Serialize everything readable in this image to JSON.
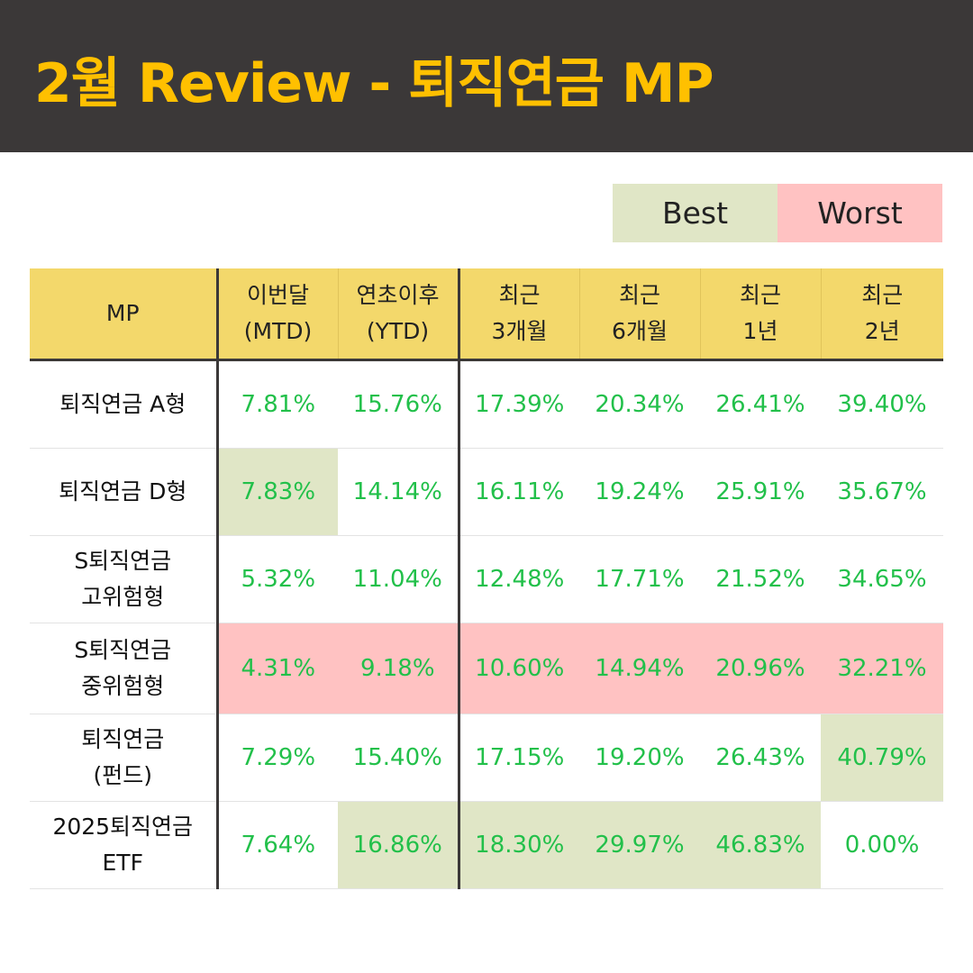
{
  "title": "2월 Review - 퇴직연금 MP",
  "legend": {
    "best": "Best",
    "worst": "Worst"
  },
  "colors": {
    "header_bg": "#3b3838",
    "title": "#ffc000",
    "best": "#e0e6c6",
    "worst": "#ffc2c2",
    "value_text": "#22c04a",
    "table_header": "#f3d86b"
  },
  "columns": [
    [
      "MP"
    ],
    [
      "이번달",
      "(MTD)"
    ],
    [
      "연초이후",
      "(YTD)"
    ],
    [
      "최근",
      "3개월"
    ],
    [
      "최근",
      "6개월"
    ],
    [
      "최근",
      "1년"
    ],
    [
      "최근",
      "2년"
    ]
  ],
  "rows": [
    {
      "name": [
        "퇴직연금 A형"
      ],
      "values": [
        "7.81%",
        "15.76%",
        "17.39%",
        "20.34%",
        "26.41%",
        "39.40%"
      ],
      "highlight": [
        "",
        "",
        "",
        "",
        "",
        ""
      ]
    },
    {
      "name": [
        "퇴직연금 D형"
      ],
      "values": [
        "7.83%",
        "14.14%",
        "16.11%",
        "19.24%",
        "25.91%",
        "35.67%"
      ],
      "highlight": [
        "best",
        "",
        "",
        "",
        "",
        ""
      ]
    },
    {
      "name": [
        "S퇴직연금",
        "고위험형"
      ],
      "values": [
        "5.32%",
        "11.04%",
        "12.48%",
        "17.71%",
        "21.52%",
        "34.65%"
      ],
      "highlight": [
        "",
        "",
        "",
        "",
        "",
        ""
      ]
    },
    {
      "name": [
        "S퇴직연금",
        "중위험형"
      ],
      "values": [
        "4.31%",
        "9.18%",
        "10.60%",
        "14.94%",
        "20.96%",
        "32.21%"
      ],
      "highlight": [
        "worst",
        "worst",
        "worst",
        "worst",
        "worst",
        "worst"
      ]
    },
    {
      "name": [
        "퇴직연금",
        "(펀드)"
      ],
      "values": [
        "7.29%",
        "15.40%",
        "17.15%",
        "19.20%",
        "26.43%",
        "40.79%"
      ],
      "highlight": [
        "",
        "",
        "",
        "",
        "",
        "best"
      ]
    },
    {
      "name": [
        "2025퇴직연금",
        "ETF"
      ],
      "values": [
        "7.64%",
        "16.86%",
        "18.30%",
        "29.97%",
        "46.83%",
        "0.00%"
      ],
      "highlight": [
        "",
        "best",
        "best",
        "best",
        "best",
        ""
      ]
    }
  ]
}
